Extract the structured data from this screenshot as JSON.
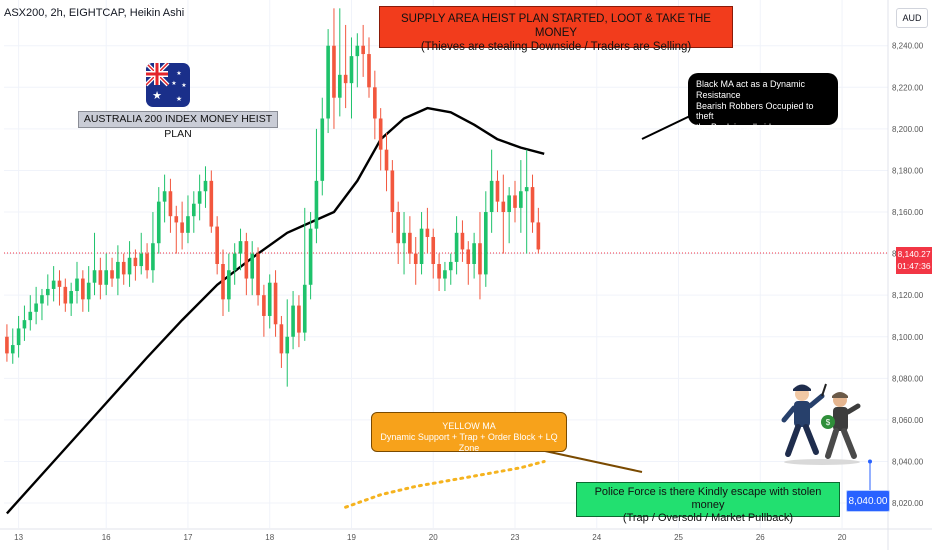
{
  "header": {
    "symbol_line": "ASX200, 2h, EIGHTCAP, Heikin Ashi",
    "currency": "AUD"
  },
  "annotations": {
    "supply_line1": "SUPPLY AREA HEIST PLAN STARTED, LOOT & TAKE THE MONEY",
    "supply_line2": "(Thieves are stealing Downside / Traders are Selling)",
    "black_ma_line1": "Black MA act as a Dynamic Resistance",
    "black_ma_line2": "Bearish Robbers Occupied to theft",
    "black_ma_line3": "the Bank in sell side",
    "yellow_ma_line1": "YELLOW MA",
    "yellow_ma_line2": "Dynamic Support + Trap + Order Block + LQ Zone",
    "police_line1": "Police Force is there Kindly escape with stolen money",
    "police_line2": "(Trap / Oversold / Market Pullback)",
    "plan_title": "AUSTRALIA 200 INDEX MONEY HEIST PLAN"
  },
  "badges": {
    "last_price": "8,140.27",
    "countdown": "01:47:36",
    "target": "8,040.00"
  },
  "colors": {
    "bull": "#1ec26b",
    "bear": "#f2573e",
    "black_ma": "#000000",
    "yellow_ma": "#f5b31f",
    "last_price_line": "#f23645",
    "target_marker": "#2962ff",
    "grid": "#f0f3fa"
  },
  "chart_data": {
    "type": "candlestick",
    "style": "Heikin Ashi",
    "symbol": "ASX200",
    "timeframe": "2h",
    "ylim": [
      8008,
      8262
    ],
    "y_ticks": [
      8020,
      8040,
      8060,
      8080,
      8100,
      8120,
      8140,
      8160,
      8180,
      8200,
      8220,
      8240
    ],
    "y_tick_labels": [
      "8,020.00",
      "8,040.00",
      "8,060.00",
      "8,080.00",
      "8,100.00",
      "8,120.00",
      "8,140.00",
      "8,160.00",
      "8,180.00",
      "8,200.00",
      "8,220.00",
      "8,240.00"
    ],
    "x_tick_labels": [
      "13",
      "16",
      "17",
      "18",
      "19",
      "20",
      "23",
      "24",
      "25",
      "26",
      "20"
    ],
    "x_tick_index": [
      2,
      17,
      31,
      45,
      59,
      73,
      87,
      101,
      115,
      129,
      143
    ],
    "candles": [
      {
        "o": 8100,
        "h": 8106,
        "l": 8088,
        "c": 8092
      },
      {
        "o": 8092,
        "h": 8104,
        "l": 8087,
        "c": 8096
      },
      {
        "o": 8096,
        "h": 8110,
        "l": 8090,
        "c": 8104
      },
      {
        "o": 8104,
        "h": 8115,
        "l": 8098,
        "c": 8108
      },
      {
        "o": 8108,
        "h": 8120,
        "l": 8103,
        "c": 8112
      },
      {
        "o": 8112,
        "h": 8124,
        "l": 8106,
        "c": 8116
      },
      {
        "o": 8116,
        "h": 8123,
        "l": 8108,
        "c": 8120
      },
      {
        "o": 8120,
        "h": 8130,
        "l": 8115,
        "c": 8123
      },
      {
        "o": 8123,
        "h": 8134,
        "l": 8117,
        "c": 8127
      },
      {
        "o": 8127,
        "h": 8132,
        "l": 8115,
        "c": 8124
      },
      {
        "o": 8124,
        "h": 8128,
        "l": 8112,
        "c": 8116
      },
      {
        "o": 8116,
        "h": 8126,
        "l": 8110,
        "c": 8122
      },
      {
        "o": 8122,
        "h": 8136,
        "l": 8116,
        "c": 8128
      },
      {
        "o": 8128,
        "h": 8132,
        "l": 8112,
        "c": 8118
      },
      {
        "o": 8118,
        "h": 8134,
        "l": 8112,
        "c": 8126
      },
      {
        "o": 8126,
        "h": 8150,
        "l": 8120,
        "c": 8132
      },
      {
        "o": 8132,
        "h": 8138,
        "l": 8118,
        "c": 8125
      },
      {
        "o": 8125,
        "h": 8140,
        "l": 8120,
        "c": 8132
      },
      {
        "o": 8132,
        "h": 8138,
        "l": 8124,
        "c": 8128
      },
      {
        "o": 8128,
        "h": 8144,
        "l": 8120,
        "c": 8136
      },
      {
        "o": 8136,
        "h": 8140,
        "l": 8125,
        "c": 8130
      },
      {
        "o": 8130,
        "h": 8146,
        "l": 8124,
        "c": 8138
      },
      {
        "o": 8138,
        "h": 8142,
        "l": 8127,
        "c": 8134
      },
      {
        "o": 8134,
        "h": 8150,
        "l": 8130,
        "c": 8140
      },
      {
        "o": 8140,
        "h": 8145,
        "l": 8128,
        "c": 8132
      },
      {
        "o": 8132,
        "h": 8160,
        "l": 8126,
        "c": 8145
      },
      {
        "o": 8145,
        "h": 8172,
        "l": 8140,
        "c": 8165
      },
      {
        "o": 8165,
        "h": 8178,
        "l": 8155,
        "c": 8170
      },
      {
        "o": 8170,
        "h": 8176,
        "l": 8150,
        "c": 8158
      },
      {
        "o": 8158,
        "h": 8163,
        "l": 8140,
        "c": 8155
      },
      {
        "o": 8155,
        "h": 8165,
        "l": 8142,
        "c": 8150
      },
      {
        "o": 8150,
        "h": 8168,
        "l": 8145,
        "c": 8158
      },
      {
        "o": 8158,
        "h": 8170,
        "l": 8150,
        "c": 8164
      },
      {
        "o": 8164,
        "h": 8178,
        "l": 8156,
        "c": 8170
      },
      {
        "o": 8170,
        "h": 8182,
        "l": 8162,
        "c": 8175
      },
      {
        "o": 8175,
        "h": 8180,
        "l": 8150,
        "c": 8153
      },
      {
        "o": 8153,
        "h": 8158,
        "l": 8130,
        "c": 8135
      },
      {
        "o": 8135,
        "h": 8142,
        "l": 8110,
        "c": 8118
      },
      {
        "o": 8118,
        "h": 8140,
        "l": 8112,
        "c": 8132
      },
      {
        "o": 8132,
        "h": 8145,
        "l": 8125,
        "c": 8140
      },
      {
        "o": 8140,
        "h": 8152,
        "l": 8132,
        "c": 8146
      },
      {
        "o": 8146,
        "h": 8150,
        "l": 8120,
        "c": 8128
      },
      {
        "o": 8128,
        "h": 8146,
        "l": 8120,
        "c": 8140
      },
      {
        "o": 8140,
        "h": 8143,
        "l": 8115,
        "c": 8120
      },
      {
        "o": 8120,
        "h": 8125,
        "l": 8100,
        "c": 8110
      },
      {
        "o": 8110,
        "h": 8130,
        "l": 8104,
        "c": 8126
      },
      {
        "o": 8126,
        "h": 8132,
        "l": 8100,
        "c": 8106
      },
      {
        "o": 8106,
        "h": 8110,
        "l": 8085,
        "c": 8092
      },
      {
        "o": 8092,
        "h": 8118,
        "l": 8076,
        "c": 8100
      },
      {
        "o": 8100,
        "h": 8122,
        "l": 8094,
        "c": 8115
      },
      {
        "o": 8115,
        "h": 8120,
        "l": 8095,
        "c": 8102
      },
      {
        "o": 8102,
        "h": 8162,
        "l": 8098,
        "c": 8125
      },
      {
        "o": 8125,
        "h": 8160,
        "l": 8118,
        "c": 8152
      },
      {
        "o": 8152,
        "h": 8200,
        "l": 8145,
        "c": 8175
      },
      {
        "o": 8175,
        "h": 8215,
        "l": 8168,
        "c": 8205
      },
      {
        "o": 8205,
        "h": 8248,
        "l": 8198,
        "c": 8240
      },
      {
        "o": 8240,
        "h": 8258,
        "l": 8200,
        "c": 8215
      },
      {
        "o": 8215,
        "h": 8258,
        "l": 8206,
        "c": 8226
      },
      {
        "o": 8226,
        "h": 8250,
        "l": 8210,
        "c": 8222
      },
      {
        "o": 8222,
        "h": 8244,
        "l": 8205,
        "c": 8235
      },
      {
        "o": 8235,
        "h": 8246,
        "l": 8220,
        "c": 8240
      },
      {
        "o": 8240,
        "h": 8250,
        "l": 8225,
        "c": 8236
      },
      {
        "o": 8236,
        "h": 8244,
        "l": 8215,
        "c": 8220
      },
      {
        "o": 8220,
        "h": 8228,
        "l": 8195,
        "c": 8205
      },
      {
        "o": 8205,
        "h": 8210,
        "l": 8180,
        "c": 8190
      },
      {
        "o": 8190,
        "h": 8198,
        "l": 8170,
        "c": 8180
      },
      {
        "o": 8180,
        "h": 8185,
        "l": 8150,
        "c": 8160
      },
      {
        "o": 8160,
        "h": 8165,
        "l": 8135,
        "c": 8145
      },
      {
        "o": 8145,
        "h": 8160,
        "l": 8130,
        "c": 8150
      },
      {
        "o": 8150,
        "h": 8158,
        "l": 8135,
        "c": 8140
      },
      {
        "o": 8140,
        "h": 8148,
        "l": 8125,
        "c": 8135
      },
      {
        "o": 8135,
        "h": 8160,
        "l": 8130,
        "c": 8152
      },
      {
        "o": 8152,
        "h": 8162,
        "l": 8140,
        "c": 8148
      },
      {
        "o": 8148,
        "h": 8152,
        "l": 8128,
        "c": 8135
      },
      {
        "o": 8135,
        "h": 8140,
        "l": 8122,
        "c": 8128
      },
      {
        "o": 8128,
        "h": 8136,
        "l": 8122,
        "c": 8132
      },
      {
        "o": 8132,
        "h": 8140,
        "l": 8125,
        "c": 8136
      },
      {
        "o": 8136,
        "h": 8158,
        "l": 8130,
        "c": 8150
      },
      {
        "o": 8150,
        "h": 8156,
        "l": 8136,
        "c": 8142
      },
      {
        "o": 8142,
        "h": 8146,
        "l": 8125,
        "c": 8135
      },
      {
        "o": 8135,
        "h": 8150,
        "l": 8128,
        "c": 8145
      },
      {
        "o": 8145,
        "h": 8160,
        "l": 8118,
        "c": 8130
      },
      {
        "o": 8130,
        "h": 8170,
        "l": 8124,
        "c": 8160
      },
      {
        "o": 8160,
        "h": 8190,
        "l": 8150,
        "c": 8175
      },
      {
        "o": 8175,
        "h": 8180,
        "l": 8160,
        "c": 8165
      },
      {
        "o": 8165,
        "h": 8178,
        "l": 8140,
        "c": 8160
      },
      {
        "o": 8160,
        "h": 8172,
        "l": 8145,
        "c": 8168
      },
      {
        "o": 8168,
        "h": 8175,
        "l": 8155,
        "c": 8162
      },
      {
        "o": 8162,
        "h": 8185,
        "l": 8150,
        "c": 8170
      },
      {
        "o": 8170,
        "h": 8190,
        "l": 8140,
        "c": 8172
      },
      {
        "o": 8172,
        "h": 8178,
        "l": 8150,
        "c": 8155
      },
      {
        "o": 8155,
        "h": 8162,
        "l": 8140,
        "c": 8142
      }
    ],
    "candle_dates": "auto",
    "black_ma": [
      [
        0,
        8015
      ],
      [
        8,
        8040
      ],
      [
        16,
        8065
      ],
      [
        24,
        8090
      ],
      [
        30,
        8108
      ],
      [
        36,
        8125
      ],
      [
        42,
        8138
      ],
      [
        48,
        8150
      ],
      [
        52,
        8155
      ],
      [
        56,
        8160
      ],
      [
        60,
        8175
      ],
      [
        64,
        8195
      ],
      [
        68,
        8205
      ],
      [
        72,
        8210
      ],
      [
        76,
        8208
      ],
      [
        80,
        8202
      ],
      [
        84,
        8195
      ],
      [
        88,
        8191
      ],
      [
        92,
        8188
      ]
    ],
    "yellow_ma": [
      [
        58,
        8018
      ],
      [
        64,
        8024
      ],
      [
        70,
        8028
      ],
      [
        76,
        8031
      ],
      [
        82,
        8034
      ],
      [
        88,
        8037
      ],
      [
        92,
        8040
      ]
    ]
  }
}
